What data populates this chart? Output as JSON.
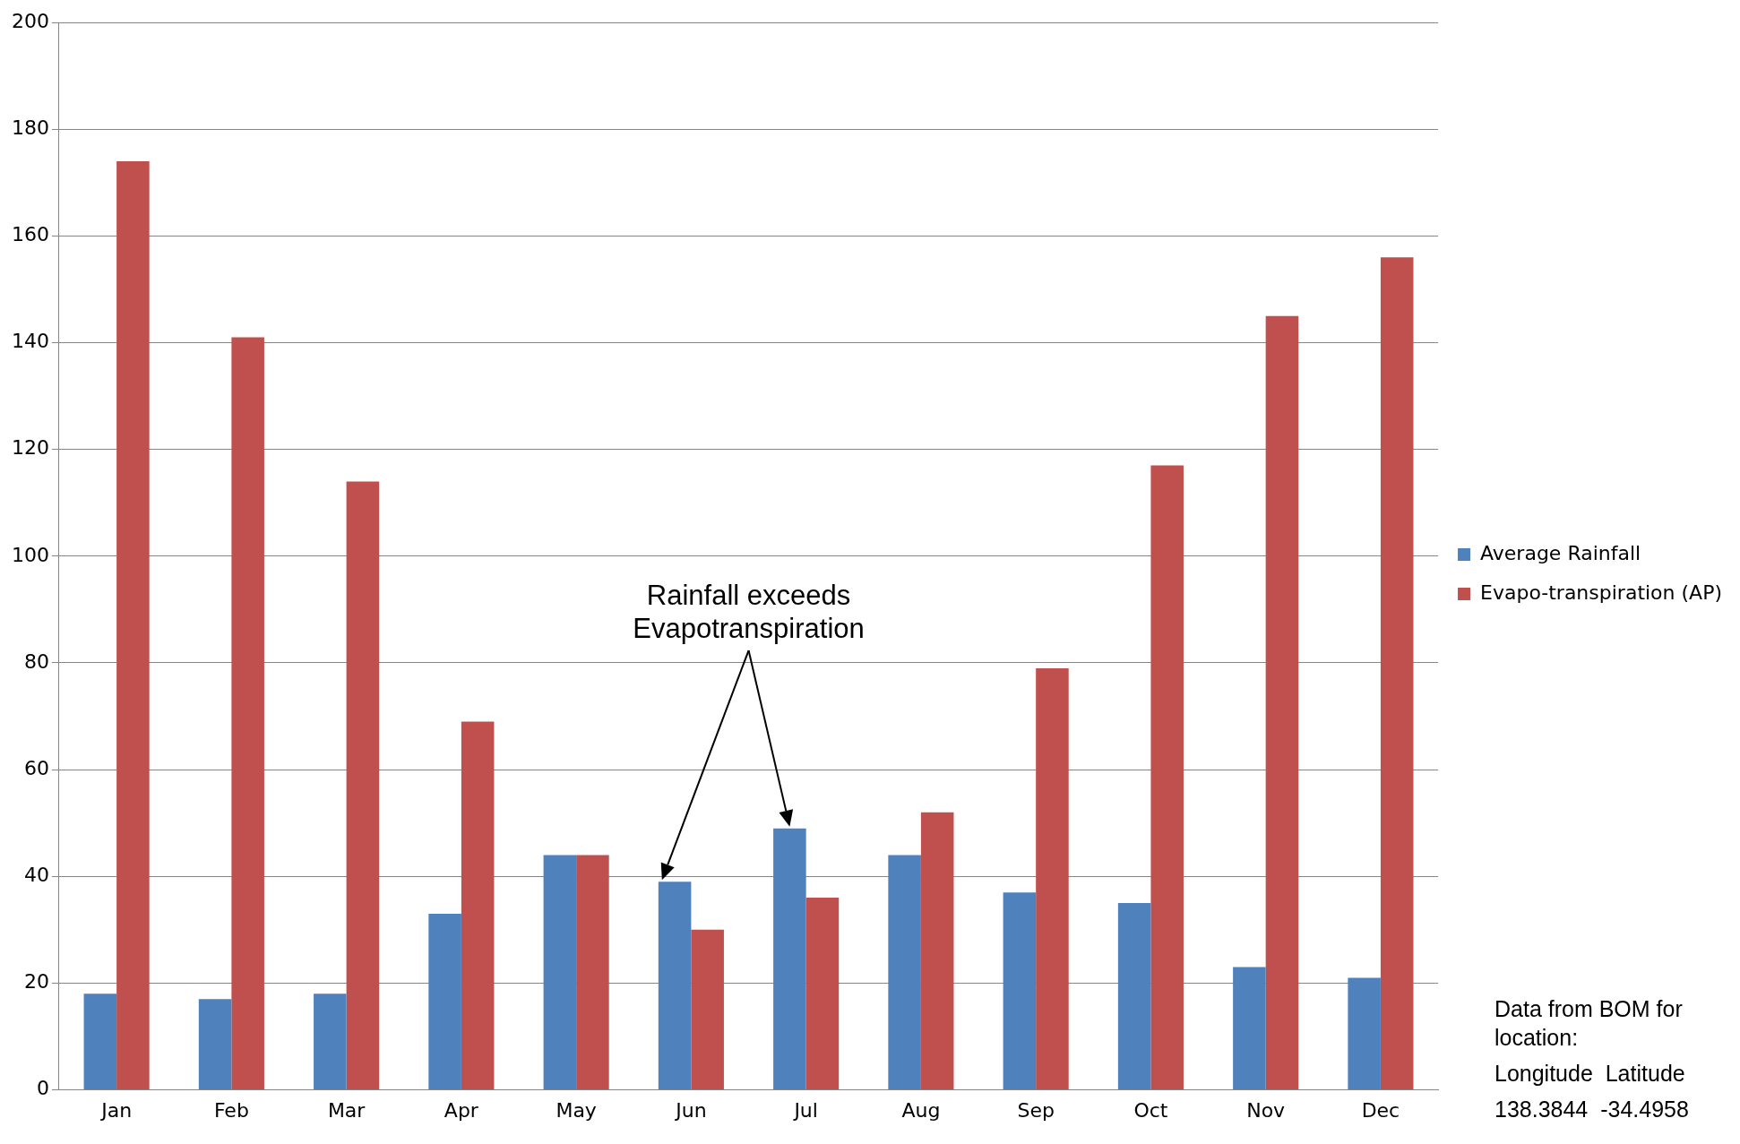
{
  "chart_data": {
    "type": "bar",
    "categories": [
      "Jan",
      "Feb",
      "Mar",
      "Apr",
      "May",
      "Jun",
      "Jul",
      "Aug",
      "Sep",
      "Oct",
      "Nov",
      "Dec"
    ],
    "series": [
      {
        "name": "Average Rainfall",
        "color": "#4f81bd",
        "values": [
          18,
          17,
          18,
          33,
          44,
          39,
          49,
          44,
          37,
          35,
          23,
          21
        ]
      },
      {
        "name": "Evapo-transpiration (AP)",
        "color": "#c0504d",
        "values": [
          174,
          141,
          114,
          69,
          44,
          30,
          36,
          52,
          79,
          117,
          145,
          156
        ]
      }
    ],
    "ylim": [
      0,
      200
    ],
    "yticks": [
      0,
      20,
      40,
      60,
      80,
      100,
      120,
      140,
      160,
      180,
      200
    ],
    "grid": "y",
    "legend": "right",
    "annotations": [
      "Rainfall exceeds\nEvapotranspiration",
      "Data from BOM for location:",
      "Longitude  Latitude",
      "138.3844  -34.4958"
    ]
  }
}
